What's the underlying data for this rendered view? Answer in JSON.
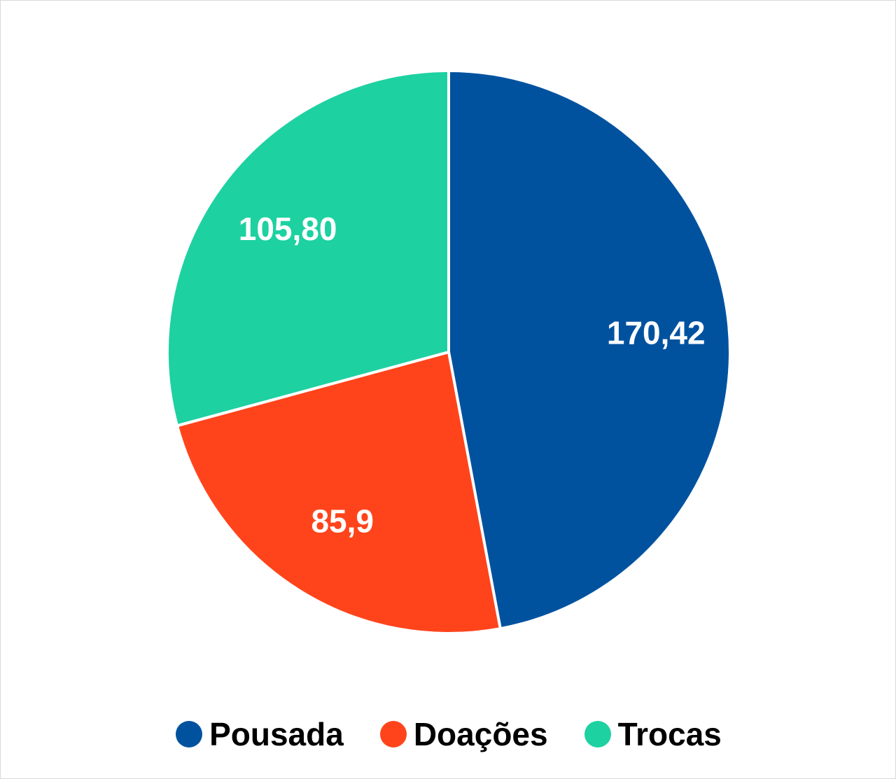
{
  "chart_data": {
    "type": "pie",
    "categories": [
      "Pousada",
      "Doações",
      "Trocas"
    ],
    "values": [
      170.42,
      85.9,
      105.8
    ],
    "data_labels": [
      "170,42",
      "85,9",
      "105,80"
    ],
    "colors": [
      "#00529F",
      "#FF441C",
      "#1DD1A1"
    ],
    "start_angle_deg": 0,
    "direction": "clockwise",
    "legend_position": "bottom",
    "title": ""
  }
}
